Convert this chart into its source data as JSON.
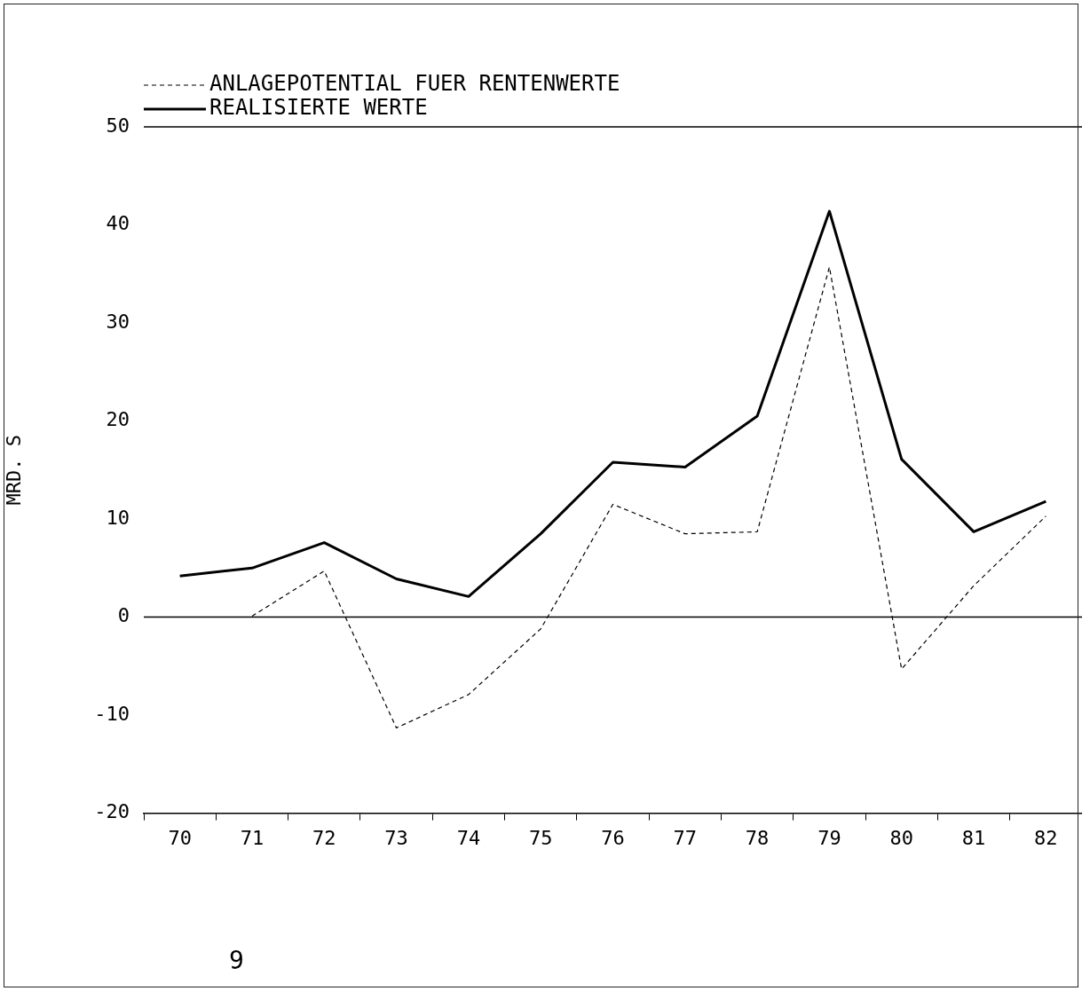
{
  "chart_data": {
    "type": "line",
    "ylabel": "MRD. S",
    "categories": [
      "70",
      "71",
      "72",
      "73",
      "74",
      "75",
      "76",
      "77",
      "78",
      "79",
      "80",
      "81",
      "82"
    ],
    "series": [
      {
        "name": "ANLAGEPOTENTIAL FUER RENTENWERTE",
        "color": "#000000",
        "line_style": "dashed",
        "values": [
          null,
          0.1,
          4.7,
          -11.3,
          -7.9,
          -1.2,
          11.5,
          8.5,
          8.7,
          35.7,
          -5.3,
          3.2,
          10.3
        ]
      },
      {
        "name": "REALISIERTE WERTE",
        "color": "#000000",
        "line_style": "solid",
        "values": [
          4.2,
          5.0,
          7.6,
          3.9,
          2.1,
          8.5,
          15.8,
          15.3,
          20.5,
          41.4,
          16.1,
          8.7,
          11.8
        ]
      }
    ],
    "ylim": [
      -20,
      50
    ],
    "yticks": [
      -20,
      -10,
      0,
      10,
      20,
      30,
      40,
      50
    ],
    "ref_lines": [
      {
        "axis": "y",
        "value": 0
      }
    ],
    "grid": false,
    "legend": "top left",
    "marker": "none",
    "annotations": [
      "9"
    ]
  }
}
